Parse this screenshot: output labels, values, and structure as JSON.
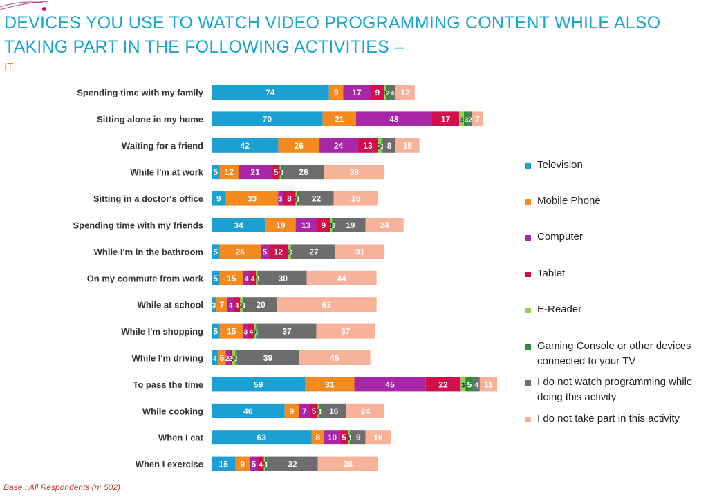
{
  "title": "DEVICES YOU USE TO WATCH VIDEO PROGRAMMING CONTENT WHILE ALSO TAKING PART IN THE FOLLOWING ACTIVITIES –",
  "subtitle": "IT",
  "base_note": "Base : All Respondents (n: 502)",
  "chart_data": {
    "type": "bar",
    "orientation": "horizontal",
    "stacked": true,
    "categories": [
      "Spending time with my family",
      "Sitting alone in my home",
      "Waiting for a friend",
      "While I'm at work",
      "Sitting in a doctor's office",
      "Spending time with my friends",
      "While I'm in the bathroom",
      "On my commute from work",
      "While at school",
      "While I'm shopping",
      "While I'm driving",
      "To pass the time",
      "While cooking",
      "When I eat",
      "When I exercise"
    ],
    "series": [
      {
        "name": "Television",
        "color": "#1aa0d2",
        "values": [
          74,
          70,
          42,
          5,
          9,
          34,
          5,
          5,
          3,
          5,
          4,
          59,
          46,
          63,
          15
        ]
      },
      {
        "name": "Mobile Phone",
        "color": "#f58b1f",
        "values": [
          9,
          21,
          26,
          12,
          33,
          19,
          26,
          15,
          7,
          15,
          5,
          31,
          9,
          8,
          9
        ]
      },
      {
        "name": "Computer",
        "color": "#a826a8",
        "values": [
          17,
          48,
          24,
          21,
          3,
          13,
          5,
          4,
          4,
          3,
          2,
          45,
          7,
          10,
          5
        ]
      },
      {
        "name": "Tablet",
        "color": "#d0104c",
        "values": [
          9,
          17,
          13,
          5,
          8,
          9,
          12,
          4,
          4,
          4,
          2,
          22,
          5,
          5,
          4
        ]
      },
      {
        "name": "E-Reader",
        "color": "#92d050",
        "values": [
          1,
          3,
          2,
          1,
          1,
          1,
          2,
          1,
          2,
          1,
          2,
          3,
          1,
          1,
          1
        ]
      },
      {
        "name": "Gaming Console or other devices connected to your TV",
        "color": "#2e8b3e",
        "values": [
          2,
          3,
          1,
          1,
          1,
          2,
          1,
          1,
          1,
          1,
          1,
          5,
          1,
          1,
          1
        ]
      },
      {
        "name": "I do not watch programming while doing this activity",
        "color": "#6d6d6d",
        "values": [
          4,
          2,
          8,
          26,
          22,
          19,
          27,
          30,
          20,
          37,
          39,
          4,
          16,
          9,
          32
        ]
      },
      {
        "name": "I do not take part in this activity",
        "color": "#f7b29a",
        "values": [
          12,
          7,
          15,
          38,
          28,
          24,
          31,
          44,
          63,
          37,
          45,
          11,
          24,
          16,
          38
        ]
      }
    ],
    "legend_position": "right",
    "grid": false
  }
}
